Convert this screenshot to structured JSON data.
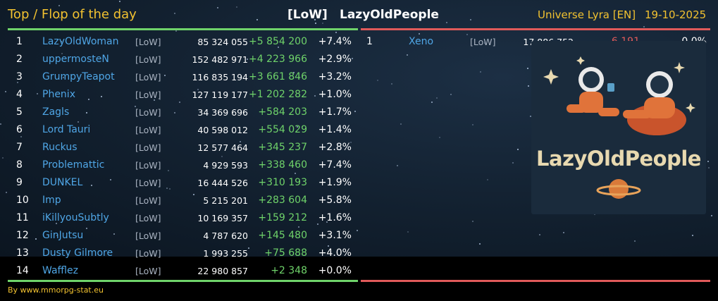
{
  "header": {
    "title": "Top / Flop of the day",
    "tag": "[LoW]",
    "alliance": "LazyOldPeople",
    "universe": "Universe Lyra [EN]",
    "date": "19-10-2025"
  },
  "top": [
    {
      "rank": "1",
      "name": "LazyOldWoman",
      "tag": "[LoW]",
      "points": "85 324 055",
      "gain": "+5 854 200",
      "pct": "+7.4%"
    },
    {
      "rank": "2",
      "name": "uppermosteN",
      "tag": "[LoW]",
      "points": "152 482 971",
      "gain": "+4 223 966",
      "pct": "+2.9%"
    },
    {
      "rank": "3",
      "name": "GrumpyTeapot",
      "tag": "[LoW]",
      "points": "116 835 194",
      "gain": "+3 661 846",
      "pct": "+3.2%"
    },
    {
      "rank": "4",
      "name": "Phenix",
      "tag": "[LoW]",
      "points": "127 119 177",
      "gain": "+1 202 282",
      "pct": "+1.0%"
    },
    {
      "rank": "5",
      "name": "Zagls",
      "tag": "[LoW]",
      "points": "34 369 696",
      "gain": "+584 203",
      "pct": "+1.7%"
    },
    {
      "rank": "6",
      "name": "Lord Tauri",
      "tag": "[LoW]",
      "points": "40 598 012",
      "gain": "+554 029",
      "pct": "+1.4%"
    },
    {
      "rank": "7",
      "name": "Ruckus",
      "tag": "[LoW]",
      "points": "12 577 464",
      "gain": "+345 237",
      "pct": "+2.8%"
    },
    {
      "rank": "8",
      "name": "Problemattic",
      "tag": "[LoW]",
      "points": "4 929 593",
      "gain": "+338 460",
      "pct": "+7.4%"
    },
    {
      "rank": "9",
      "name": "DUNKEL",
      "tag": "[LoW]",
      "points": "16 444 526",
      "gain": "+310 193",
      "pct": "+1.9%"
    },
    {
      "rank": "10",
      "name": "Imp",
      "tag": "[LoW]",
      "points": "5 215 201",
      "gain": "+283 604",
      "pct": "+5.8%"
    },
    {
      "rank": "11",
      "name": "iKillyouSubtly",
      "tag": "[LoW]",
      "points": "10 169 357",
      "gain": "+159 212",
      "pct": "+1.6%"
    },
    {
      "rank": "12",
      "name": "GinJutsu",
      "tag": "[LoW]",
      "points": "4 787 620",
      "gain": "+145 480",
      "pct": "+3.1%"
    },
    {
      "rank": "13",
      "name": "Dusty Gilmore",
      "tag": "[LoW]",
      "points": "1 993 255",
      "gain": "+75 688",
      "pct": "+4.0%"
    },
    {
      "rank": "14",
      "name": "Wafflez",
      "tag": "[LoW]",
      "points": "22 980 857",
      "gain": "+2 348",
      "pct": "+0.0%"
    }
  ],
  "flop": [
    {
      "rank": "1",
      "name": "Xeno",
      "tag": "[LoW]",
      "points": "17 886 752",
      "loss": "-6 191",
      "pct": "0.0%"
    }
  ],
  "logo": {
    "text": "LazyOldPeople"
  },
  "footer": "By www.mmorpg-stat.eu",
  "colors": {
    "accent": "#f2c230",
    "gain": "#6fd36a",
    "loss": "#e05a5a",
    "name": "#4fa6e6"
  }
}
